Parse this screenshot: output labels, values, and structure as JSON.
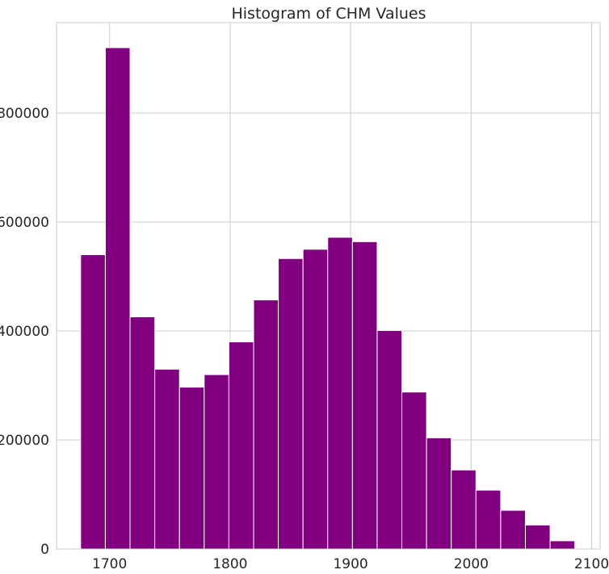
{
  "chart_data": {
    "type": "bar",
    "title": "Histogram of CHM Values",
    "xlabel": "",
    "ylabel": "",
    "bin_start": 1676,
    "bin_width": 20.5,
    "values": [
      540000,
      920000,
      426000,
      330000,
      297000,
      320000,
      380000,
      457000,
      533000,
      550000,
      572000,
      564000,
      401000,
      288000,
      204000,
      145000,
      108000,
      71000,
      44000,
      15000
    ],
    "xlim": [
      1656,
      2107
    ],
    "ylim": [
      0,
      966000
    ],
    "xticks": [
      1700,
      1800,
      1900,
      2000,
      2100
    ],
    "yticks": [
      0,
      200000,
      400000,
      600000,
      800000
    ],
    "grid": true,
    "bar_color": "#800080"
  }
}
